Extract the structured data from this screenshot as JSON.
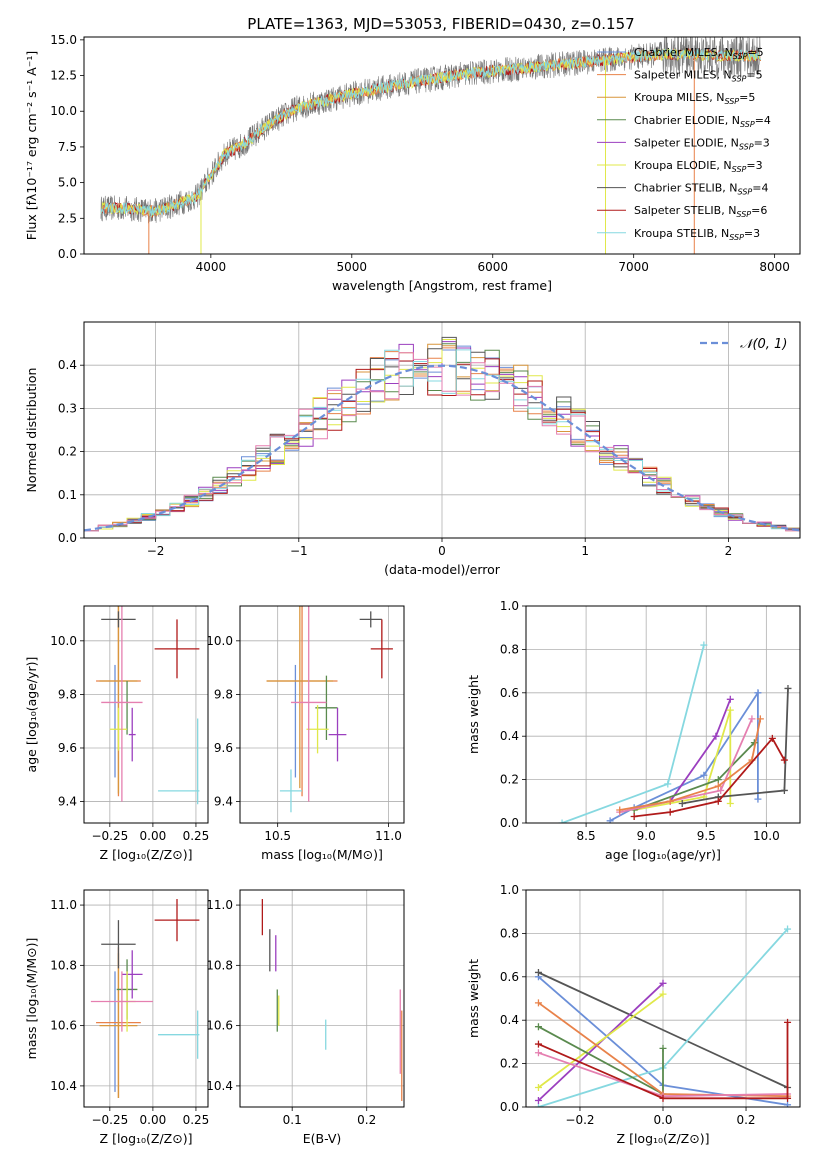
{
  "title": "PLATE=1363, MJD=53053, FIBERID=0430, z=0.157",
  "colors": {
    "Chabrier MILES": "#6b8fd8",
    "Salpeter MILES": "#e8824a",
    "Kroupa MILES": "#d8963c",
    "Chabrier ELODIE": "#5a8a4e",
    "Salpeter ELODIE": "#9b3fbf",
    "Kroupa ELODIE": "#e0e84a",
    "Chabrier STELIB": "#555555",
    "Salpeter STELIB": "#b01a1a",
    "Kroupa STELIB": "#86d8e0",
    "Kroupa MILES line": "#e57fb0",
    "data": "#777777"
  },
  "chart_data": [
    {
      "type": "line",
      "panel": "spectrum",
      "xlabel": "wavelength [Angstrom, rest frame]",
      "ylabel": "Flux [fλ10⁻¹⁷ erg cm⁻² s⁻¹ A⁻¹]",
      "xlim": [
        3100,
        8180
      ],
      "ylim": [
        0,
        15.2
      ],
      "xticks": [
        "4000",
        "5000",
        "6000",
        "7000",
        "8000"
      ],
      "yticks": [
        "0.0",
        "2.5",
        "5.0",
        "7.5",
        "10.0",
        "12.5",
        "15.0"
      ],
      "legend_placement": "right",
      "legend": [
        "Chabrier MILES, N_SSP=5",
        "Salpeter MILES, N_SSP=5",
        "Kroupa MILES, N_SSP=5",
        "Chabrier ELODIE, N_SSP=4",
        "Salpeter ELODIE, N_SSP=3",
        "Kroupa ELODIE, N_SSP=3",
        "Chabrier STELIB, N_SSP=4",
        "Salpeter STELIB, N_SSP=6",
        "Kroupa STELIB, N_SSP=3"
      ],
      "continuum": {
        "x": [
          3220,
          3400,
          3600,
          3700,
          3900,
          4000,
          4100,
          4200,
          4300,
          4400,
          4500,
          4600,
          4800,
          5000,
          5200,
          5400,
          5600,
          5800,
          6000,
          6200,
          6400,
          6600,
          6800,
          7000,
          7200,
          7400,
          7600,
          7800,
          7900
        ],
        "y": [
          3.2,
          3.2,
          3.0,
          3.3,
          4.0,
          5.5,
          7.0,
          7.5,
          8.2,
          9.0,
          9.6,
          10.2,
          10.7,
          11.2,
          11.6,
          12.0,
          12.3,
          12.6,
          12.8,
          13.0,
          13.2,
          13.4,
          13.6,
          13.8,
          14.0,
          14.0,
          13.9,
          13.9,
          13.9
        ]
      }
    },
    {
      "type": "histogram",
      "panel": "residuals",
      "xlabel": "(data-model)/error",
      "ylabel": "Normed distribution",
      "xlim": [
        -2.5,
        2.5
      ],
      "ylim": [
        0,
        0.5
      ],
      "xticks": [
        "−2",
        "−1",
        "0",
        "1",
        "2"
      ],
      "yticks": [
        "0.0",
        "0.1",
        "0.2",
        "0.3",
        "0.4"
      ],
      "grid": true,
      "legend": [
        "𝒩(0, 1)"
      ],
      "legend_placement": "top-right",
      "bin_width": 0.1
    },
    {
      "type": "errorbar",
      "panel": "age-vs-Z",
      "xlabel": "Z [log₁₀(Z/Z⊙)]",
      "ylabel": "age  [log₁₀(age/yr)]",
      "xlim": [
        -0.4,
        0.32
      ],
      "ylim": [
        9.32,
        10.13
      ],
      "xticks": [
        "−0.25",
        "0.00",
        "0.25"
      ],
      "yticks": [
        "9.4",
        "9.6",
        "9.8",
        "10.0"
      ],
      "grid": true,
      "points": [
        {
          "model": "Chabrier MILES",
          "x": -0.22,
          "xerr": 0.0,
          "y": 9.7,
          "yerr": 0.21
        },
        {
          "model": "Salpeter MILES",
          "x": -0.2,
          "xerr": 0.13,
          "y": 9.85,
          "yerr": 0.43
        },
        {
          "model": "Kroupa MILES",
          "x": -0.2,
          "xerr": 0.11,
          "y": 9.85,
          "yerr": 0.42
        },
        {
          "model": "Chabrier ELODIE",
          "x": -0.15,
          "xerr": 0.0,
          "y": 9.75,
          "yerr": 0.1
        },
        {
          "model": "Salpeter ELODIE",
          "x": -0.12,
          "xerr": 0.02,
          "y": 9.65,
          "yerr": 0.1
        },
        {
          "model": "Kroupa ELODIE",
          "x": -0.2,
          "xerr": 0.05,
          "y": 9.67,
          "yerr": 0.08
        },
        {
          "model": "Chabrier STELIB",
          "x": -0.2,
          "xerr": 0.1,
          "y": 10.08,
          "yerr": 0.03
        },
        {
          "model": "Salpeter STELIB",
          "x": 0.14,
          "xerr": 0.13,
          "y": 9.97,
          "yerr": 0.11
        },
        {
          "model": "Kroupa STELIB",
          "x": 0.15,
          "xerr": 0.12,
          "y": 9.44,
          "yerr": 0.0
        },
        {
          "model": "Kroupa MILES line",
          "x": -0.18,
          "xerr": 0.12,
          "y": 9.77,
          "yerr": 0.37
        },
        {
          "model": "Kroupa STELIB",
          "x": 0.26,
          "xerr": 0.0,
          "y": 9.55,
          "yerr": 0.16
        }
      ]
    },
    {
      "type": "errorbar",
      "panel": "age-vs-mass",
      "xlabel": "mass [log₁₀(M/M⊙)]",
      "xlim": [
        10.33,
        11.07
      ],
      "ylim": [
        9.32,
        10.13
      ],
      "xticks": [
        "10.5",
        "11.0"
      ],
      "yticks": [
        "9.4",
        "9.6",
        "9.8",
        "10.0"
      ],
      "grid": true,
      "points": [
        {
          "model": "Chabrier MILES",
          "x": 10.58,
          "xerr": 0.0,
          "y": 9.7,
          "yerr": 0.21
        },
        {
          "model": "Salpeter MILES",
          "x": 10.61,
          "xerr": 0.16,
          "y": 9.85,
          "yerr": 0.43
        },
        {
          "model": "Kroupa MILES",
          "x": 10.6,
          "xerr": 0.15,
          "y": 9.85,
          "yerr": 0.4
        },
        {
          "model": "Chabrier ELODIE",
          "x": 10.72,
          "xerr": 0.05,
          "y": 9.75,
          "yerr": 0.12
        },
        {
          "model": "Salpeter ELODIE",
          "x": 10.77,
          "xerr": 0.04,
          "y": 9.65,
          "yerr": 0.1
        },
        {
          "model": "Kroupa ELODIE",
          "x": 10.68,
          "xerr": 0.05,
          "y": 9.67,
          "yerr": 0.09
        },
        {
          "model": "Chabrier STELIB",
          "x": 10.92,
          "xerr": 0.05,
          "y": 10.08,
          "yerr": 0.03
        },
        {
          "model": "Salpeter STELIB",
          "x": 10.97,
          "xerr": 0.05,
          "y": 9.97,
          "yerr": 0.11
        },
        {
          "model": "Kroupa STELIB",
          "x": 10.56,
          "xerr": 0.05,
          "y": 9.44,
          "yerr": 0.08
        },
        {
          "model": "Kroupa MILES line",
          "x": 10.64,
          "xerr": 0.08,
          "y": 9.77,
          "yerr": 0.37
        }
      ]
    },
    {
      "type": "line",
      "panel": "weight-vs-age",
      "xlabel": "age  [log₁₀(age/yr)]",
      "ylabel": "mass weight",
      "xlim": [
        8.0,
        10.28
      ],
      "ylim": [
        0,
        1
      ],
      "xticks": [
        "8.5",
        "9.0",
        "9.5",
        "10.0"
      ],
      "yticks": [
        "0.0",
        "0.2",
        "0.4",
        "0.6",
        "0.8",
        "1.0"
      ],
      "grid": true,
      "series": [
        {
          "model": "Kroupa STELIB",
          "x": [
            8.3,
            9.18,
            9.48
          ],
          "y": [
            0.0,
            0.18,
            0.82
          ]
        },
        {
          "model": "Chabrier MILES",
          "x": [
            8.7,
            8.9,
            9.48,
            9.93,
            9.93
          ],
          "y": [
            0.01,
            0.07,
            0.22,
            0.6,
            0.11
          ]
        },
        {
          "model": "Salpeter ELODIE",
          "x": [
            9.2,
            9.58,
            9.7
          ],
          "y": [
            0.1,
            0.4,
            0.57
          ]
        },
        {
          "model": "Kroupa ELODIE",
          "x": [
            8.9,
            9.48,
            9.7,
            9.7
          ],
          "y": [
            0.06,
            0.12,
            0.52,
            0.09
          ]
        },
        {
          "model": "Chabrier ELODIE",
          "x": [
            8.9,
            9.6,
            9.9
          ],
          "y": [
            0.06,
            0.2,
            0.37
          ]
        },
        {
          "model": "Kroupa MILES line",
          "x": [
            8.78,
            9.2,
            9.62,
            9.88
          ],
          "y": [
            0.05,
            0.1,
            0.15,
            0.48
          ]
        },
        {
          "model": "Salpeter MILES",
          "x": [
            8.78,
            9.2,
            9.6,
            9.88,
            9.95
          ],
          "y": [
            0.06,
            0.1,
            0.17,
            0.29,
            0.48
          ]
        },
        {
          "model": "Chabrier STELIB",
          "x": [
            9.3,
            9.6,
            10.15,
            10.18
          ],
          "y": [
            0.09,
            0.12,
            0.15,
            0.62
          ]
        },
        {
          "model": "Salpeter STELIB",
          "x": [
            8.9,
            9.2,
            9.6,
            10.05,
            10.15
          ],
          "y": [
            0.03,
            0.05,
            0.1,
            0.39,
            0.29
          ]
        }
      ]
    },
    {
      "type": "errorbar",
      "panel": "mass-vs-Z",
      "xlabel": "Z [log₁₀(Z/Z⊙)]",
      "ylabel": "mass [log₁₀(M/M⊙)]",
      "xlim": [
        -0.4,
        0.32
      ],
      "ylim": [
        10.33,
        11.05
      ],
      "xticks": [
        "−0.25",
        "0.00",
        "0.25"
      ],
      "yticks": [
        "10.4",
        "10.6",
        "10.8",
        "11.0"
      ],
      "grid": true,
      "points": [
        {
          "model": "Chabrier MILES",
          "x": -0.22,
          "xerr": 0.0,
          "y": 10.58,
          "yerr": 0.2
        },
        {
          "model": "Salpeter MILES",
          "x": -0.2,
          "xerr": 0.13,
          "y": 10.61,
          "yerr": 0.25
        },
        {
          "model": "Kroupa MILES",
          "x": -0.2,
          "xerr": 0.11,
          "y": 10.6,
          "yerr": 0.24
        },
        {
          "model": "Chabrier ELODIE",
          "x": -0.15,
          "xerr": 0.06,
          "y": 10.72,
          "yerr": 0.1
        },
        {
          "model": "Salpeter ELODIE",
          "x": -0.12,
          "xerr": 0.06,
          "y": 10.77,
          "yerr": 0.08
        },
        {
          "model": "Kroupa ELODIE",
          "x": -0.15,
          "xerr": 0.05,
          "y": 10.68,
          "yerr": 0.1
        },
        {
          "model": "Chabrier STELIB",
          "x": -0.2,
          "xerr": 0.1,
          "y": 10.87,
          "yerr": 0.08
        },
        {
          "model": "Salpeter STELIB",
          "x": 0.14,
          "xerr": 0.13,
          "y": 10.95,
          "yerr": 0.07
        },
        {
          "model": "Kroupa STELIB",
          "x": 0.15,
          "xerr": 0.12,
          "y": 10.57,
          "yerr": 0.0
        },
        {
          "model": "Kroupa MILES line",
          "x": -0.18,
          "xerr": 0.18,
          "y": 10.68,
          "yerr": 0.1
        },
        {
          "model": "Kroupa STELIB",
          "x": 0.26,
          "xerr": 0.0,
          "y": 10.57,
          "yerr": 0.08
        }
      ]
    },
    {
      "type": "errorbar",
      "panel": "mass-vs-EBV",
      "xlabel": "E(B-V)",
      "xlim": [
        0.03,
        0.25
      ],
      "ylim": [
        10.33,
        11.05
      ],
      "xticks": [
        "0.1",
        "0.2"
      ],
      "yticks": [
        "10.4",
        "10.6",
        "10.8",
        "11.0"
      ],
      "grid": true,
      "points": [
        {
          "model": "Salpeter STELIB",
          "x": 0.06,
          "y": 10.96,
          "yerr": 0.06
        },
        {
          "model": "Chabrier STELIB",
          "x": 0.07,
          "y": 10.85,
          "yerr": 0.07
        },
        {
          "model": "Salpeter ELODIE",
          "x": 0.078,
          "y": 10.84,
          "yerr": 0.06
        },
        {
          "model": "Chabrier ELODIE",
          "x": 0.08,
          "y": 10.65,
          "yerr": 0.07
        },
        {
          "model": "Kroupa ELODIE",
          "x": 0.082,
          "y": 10.65,
          "yerr": 0.05
        },
        {
          "model": "Kroupa STELIB",
          "x": 0.145,
          "y": 10.57,
          "yerr": 0.05
        },
        {
          "model": "Kroupa MILES line",
          "x": 0.245,
          "y": 10.58,
          "yerr": 0.14
        },
        {
          "model": "Salpeter MILES",
          "x": 0.247,
          "y": 10.5,
          "yerr": 0.15
        }
      ]
    },
    {
      "type": "line",
      "panel": "weight-vs-Z",
      "xlabel": "Z [log₁₀(Z/Z⊙)]",
      "ylabel": "mass weight",
      "xlim": [
        -0.33,
        0.33
      ],
      "ylim": [
        0,
        1
      ],
      "xticks": [
        "−0.2",
        "0.0",
        "0.2"
      ],
      "yticks": [
        "0.0",
        "0.2",
        "0.4",
        "0.6",
        "0.8",
        "1.0"
      ],
      "grid": true,
      "series": [
        {
          "model": "Chabrier MILES",
          "x": [
            -0.3,
            0.0,
            0.3
          ],
          "y": [
            0.6,
            0.1,
            0.01
          ]
        },
        {
          "model": "Chabrier STELIB",
          "x": [
            -0.3,
            0.3
          ],
          "y": [
            0.62,
            0.09
          ]
        },
        {
          "model": "Kroupa STELIB",
          "x": [
            -0.3,
            0.0,
            0.3
          ],
          "y": [
            0.0,
            0.18,
            0.82
          ]
        },
        {
          "model": "Salpeter ELODIE",
          "x": [
            -0.3,
            0.0
          ],
          "y": [
            0.03,
            0.57
          ]
        },
        {
          "model": "Kroupa ELODIE",
          "x": [
            -0.3,
            0.0
          ],
          "y": [
            0.09,
            0.52
          ]
        },
        {
          "model": "Chabrier ELODIE",
          "x": [
            -0.3,
            0.0,
            0.0
          ],
          "y": [
            0.37,
            0.06,
            0.27
          ]
        },
        {
          "model": "Salpeter MILES",
          "x": [
            -0.3,
            0.0,
            0.3
          ],
          "y": [
            0.48,
            0.06,
            0.05
          ]
        },
        {
          "model": "Kroupa MILES line",
          "x": [
            -0.3,
            0.0,
            0.3
          ],
          "y": [
            0.25,
            0.05,
            0.06
          ]
        },
        {
          "model": "Salpeter STELIB",
          "x": [
            -0.3,
            0.0,
            0.3,
            0.3
          ],
          "y": [
            0.29,
            0.04,
            0.04,
            0.39
          ]
        }
      ]
    }
  ]
}
